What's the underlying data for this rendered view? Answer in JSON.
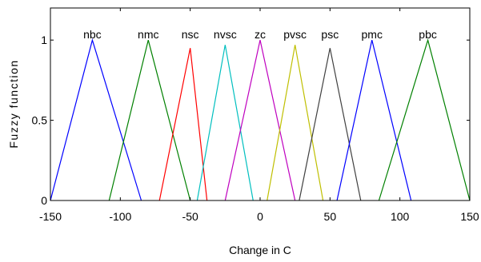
{
  "chart_data": {
    "type": "line",
    "title": "",
    "xlabel": "Change in C",
    "ylabel": "Fuzzy function",
    "xlim": [
      -150,
      150
    ],
    "ylim": [
      0,
      1.2
    ],
    "xticks": [
      -150,
      -100,
      -50,
      0,
      50,
      100,
      150
    ],
    "yticks": [
      0,
      0.5,
      1
    ],
    "ytick_labels": [
      "0",
      "0.5",
      "1"
    ],
    "grid": false,
    "legend": "none",
    "series": [
      {
        "name": "nbc",
        "color": "#0000ff",
        "x": [
          -150,
          -120,
          -85
        ],
        "y": [
          0,
          1,
          0
        ]
      },
      {
        "name": "nmc",
        "color": "#008000",
        "x": [
          -108,
          -80,
          -50
        ],
        "y": [
          0,
          1,
          0
        ]
      },
      {
        "name": "nsc",
        "color": "#ff0000",
        "x": [
          -72,
          -50,
          -38
        ],
        "y": [
          0,
          0.95,
          0
        ]
      },
      {
        "name": "nvsc",
        "color": "#00bfbf",
        "x": [
          -45,
          -25,
          -5
        ],
        "y": [
          0,
          0.97,
          0
        ]
      },
      {
        "name": "zc",
        "color": "#bf00bf",
        "x": [
          -25,
          0,
          25
        ],
        "y": [
          0,
          1,
          0
        ]
      },
      {
        "name": "pvsc",
        "color": "#bfbf00",
        "x": [
          5,
          25,
          45
        ],
        "y": [
          0,
          0.97,
          0
        ]
      },
      {
        "name": "psc",
        "color": "#404040",
        "x": [
          28,
          50,
          72
        ],
        "y": [
          0,
          0.95,
          0
        ]
      },
      {
        "name": "pmc",
        "color": "#0000ff",
        "x": [
          55,
          80,
          108
        ],
        "y": [
          0,
          1,
          0
        ]
      },
      {
        "name": "pbc",
        "color": "#008000",
        "x": [
          85,
          120,
          150
        ],
        "y": [
          0,
          1,
          0
        ]
      }
    ]
  }
}
